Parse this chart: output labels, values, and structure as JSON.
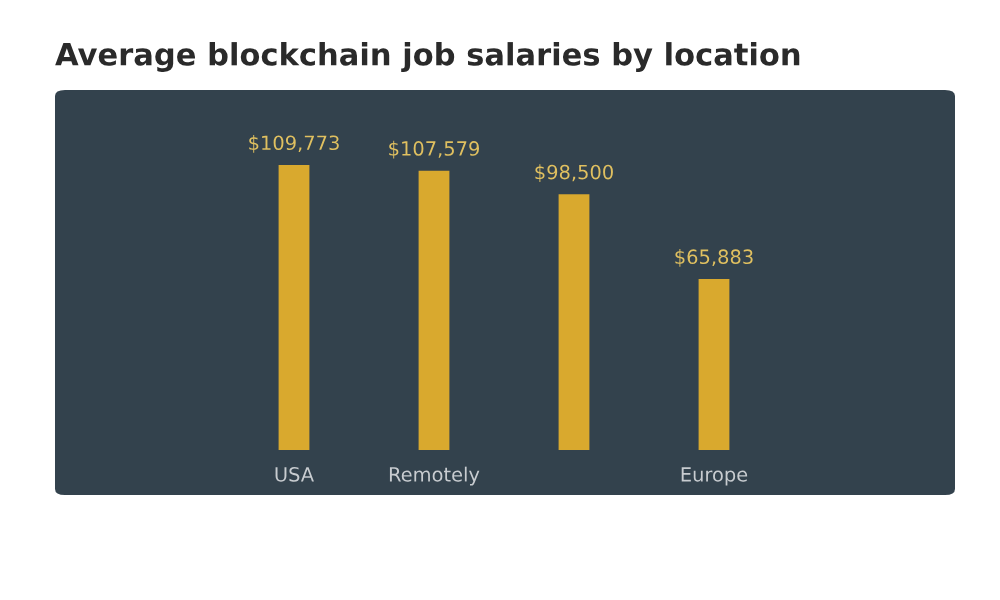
{
  "chart_data": {
    "type": "bar",
    "title": "Average blockchain job salaries by location",
    "categories": [
      "USA",
      "Remotely",
      null,
      "Europe"
    ],
    "values": [
      109773,
      107579,
      98500,
      65883
    ],
    "value_labels": [
      "$109,773",
      "$107,579",
      "$98,500",
      "$65,883"
    ],
    "color": "#d9a92e",
    "grid": false
  }
}
